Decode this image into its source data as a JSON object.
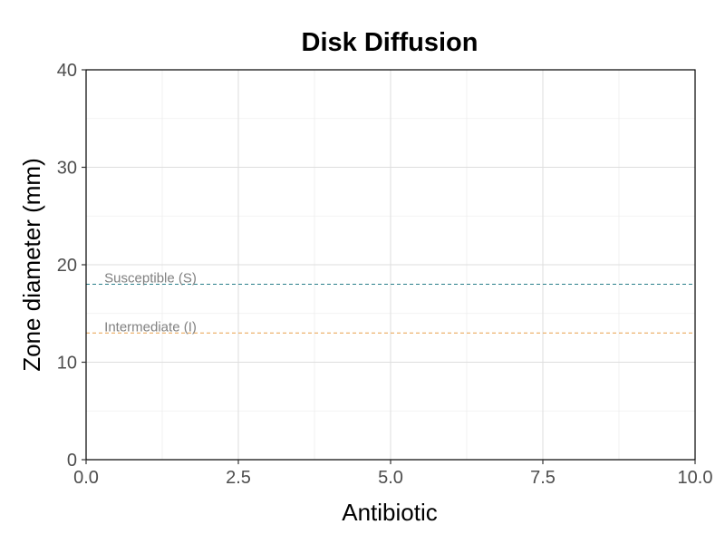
{
  "chart_data": {
    "type": "scatter",
    "title": "Disk Diffusion",
    "xlabel": "Antibiotic",
    "ylabel": "Zone diameter (mm)",
    "xlim": [
      0,
      10
    ],
    "ylim": [
      0,
      40
    ],
    "x_ticks": [
      "0.0",
      "2.5",
      "5.0",
      "7.5",
      "10.0"
    ],
    "x_tick_values": [
      0,
      2.5,
      5,
      7.5,
      10
    ],
    "y_ticks": [
      "0",
      "10",
      "20",
      "30",
      "40"
    ],
    "y_tick_values": [
      0,
      10,
      20,
      30,
      40
    ],
    "x_minor": [
      1.25,
      3.75,
      6.25,
      8.75
    ],
    "y_minor": [
      5,
      15,
      25,
      35
    ],
    "grid": true,
    "points": [],
    "reference_lines": [
      {
        "label": "Susceptible (S)",
        "y": 18,
        "color": "#2a7f8a",
        "label_x": 0.3
      },
      {
        "label": "Intermediate (I)",
        "y": 13,
        "color": "#e8a04a",
        "label_x": 0.3
      }
    ],
    "colors": {
      "grid_major": "#dedede",
      "grid_minor": "#efefef",
      "axis": "#000000"
    }
  }
}
